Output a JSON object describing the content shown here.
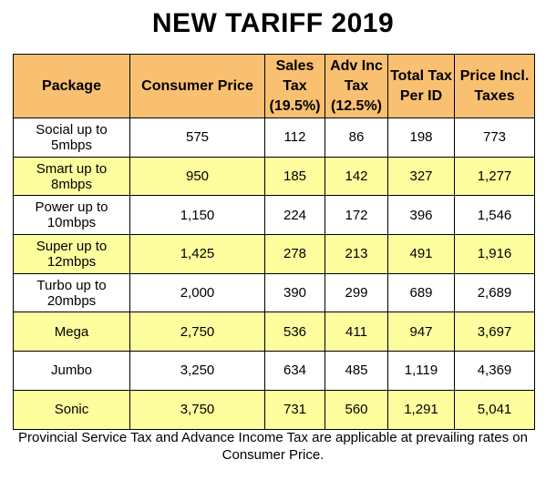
{
  "title": "NEW TARIFF 2019",
  "headers": [
    "Package",
    "Consumer Price",
    "Sales Tax (19.5%)",
    "Adv Inc Tax (12.5%)",
    "Total Tax Per ID",
    "Price Incl. Taxes"
  ],
  "rows": [
    {
      "package": "Social up to 5mbps",
      "consumer_price": "575",
      "sales_tax": "112",
      "adv_inc_tax": "86",
      "total_tax": "198",
      "price_incl": "773"
    },
    {
      "package": "Smart up to 8mbps",
      "consumer_price": "950",
      "sales_tax": "185",
      "adv_inc_tax": "142",
      "total_tax": "327",
      "price_incl": "1,277"
    },
    {
      "package": "Power up to 10mbps",
      "consumer_price": "1,150",
      "sales_tax": "224",
      "adv_inc_tax": "172",
      "total_tax": "396",
      "price_incl": "1,546"
    },
    {
      "package": "Super up to 12mbps",
      "consumer_price": "1,425",
      "sales_tax": "278",
      "adv_inc_tax": "213",
      "total_tax": "491",
      "price_incl": "1,916"
    },
    {
      "package": "Turbo up to 20mbps",
      "consumer_price": "2,000",
      "sales_tax": "390",
      "adv_inc_tax": "299",
      "total_tax": "689",
      "price_incl": "2,689"
    },
    {
      "package": "Mega",
      "consumer_price": "2,750",
      "sales_tax": "536",
      "adv_inc_tax": "411",
      "total_tax": "947",
      "price_incl": "3,697"
    },
    {
      "package": "Jumbo",
      "consumer_price": "3,250",
      "sales_tax": "634",
      "adv_inc_tax": "485",
      "total_tax": "1,119",
      "price_incl": "4,369"
    },
    {
      "package": "Sonic",
      "consumer_price": "3,750",
      "sales_tax": "731",
      "adv_inc_tax": "560",
      "total_tax": "1,291",
      "price_incl": "5,041"
    }
  ],
  "footnote": "Provincial Service Tax and Advance Income Tax are applicable at prevailing rates on Consumer Price.",
  "colors": {
    "header_bg": "#fac071",
    "alt_row_bg": "#fefe9e",
    "row_bg": "#ffffff"
  }
}
